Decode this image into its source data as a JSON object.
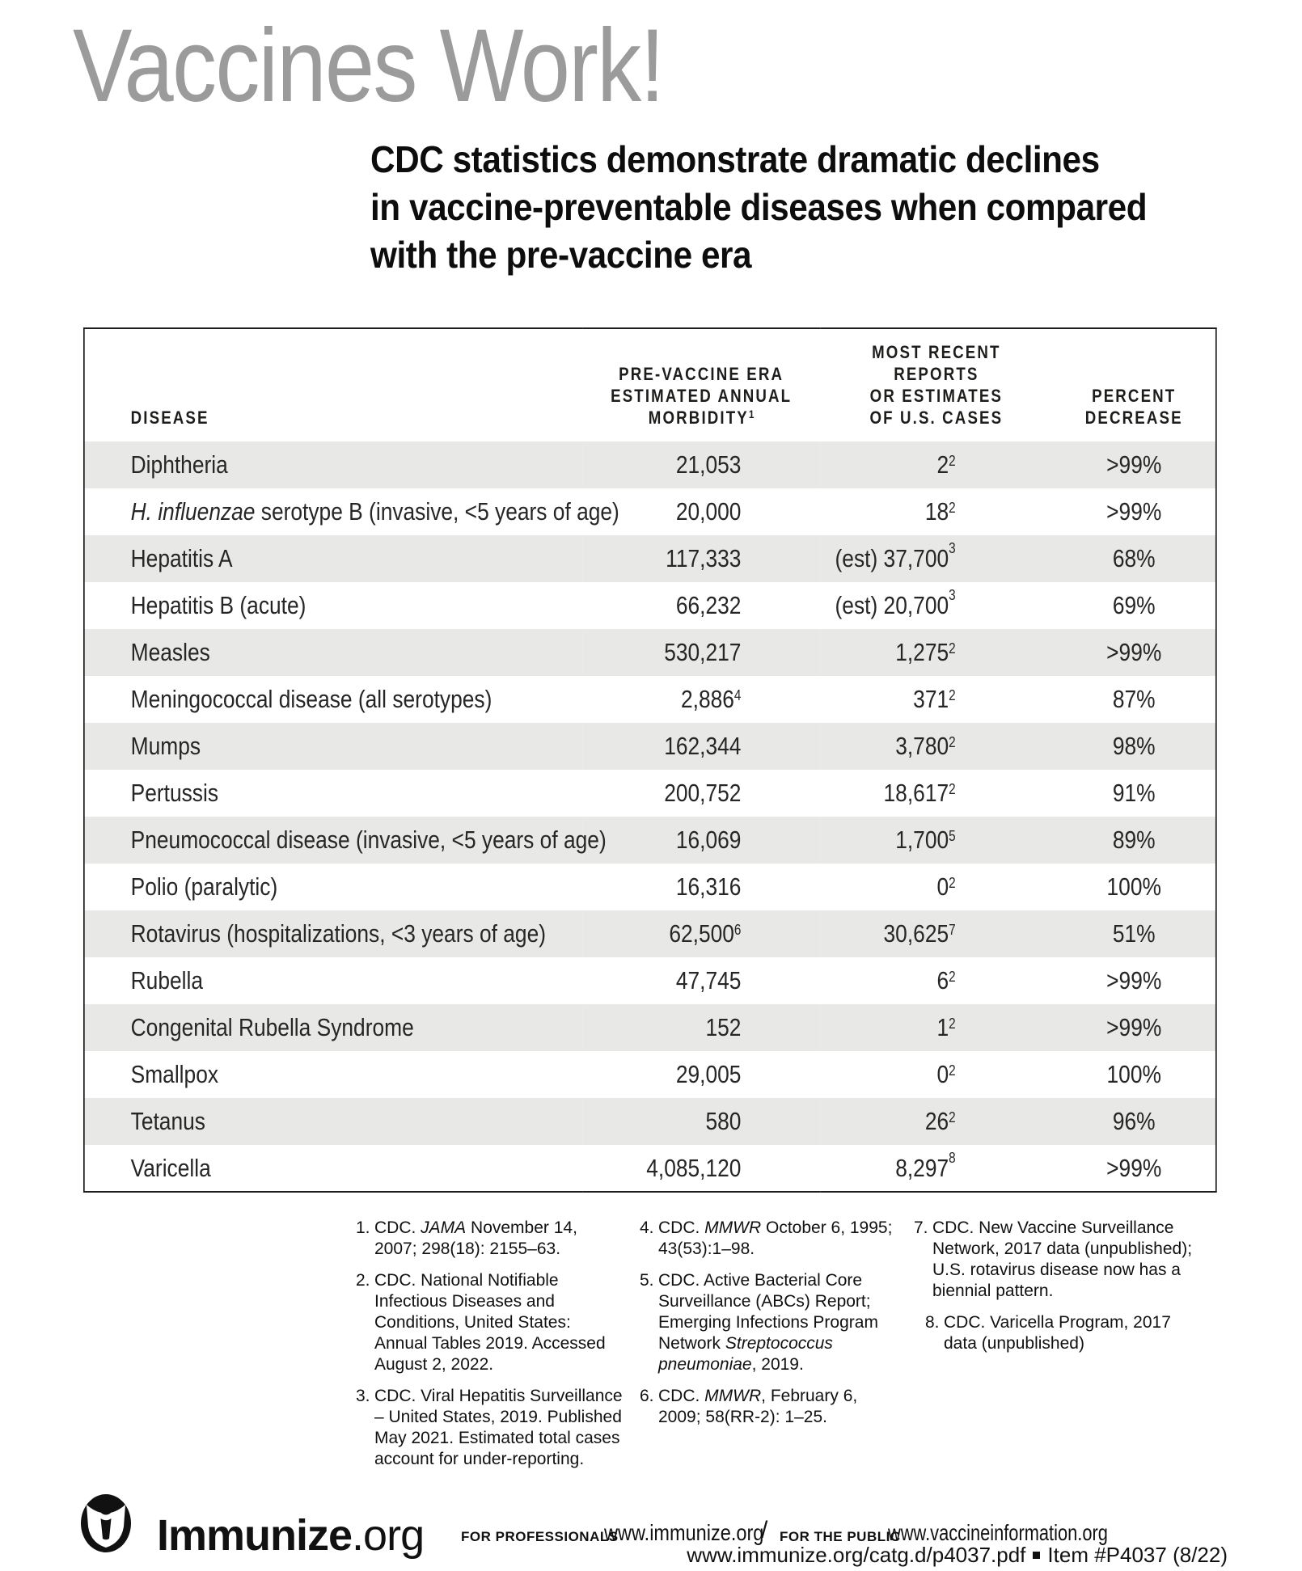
{
  "colors": {
    "row_shade": "#e8e8e7",
    "title_gray": "#9b9b9b",
    "ink": "#1d1d1b"
  },
  "page": {
    "title": "Vaccines Work!",
    "subtitle_lines": [
      "CDC statistics demonstrate dramatic declines",
      "in vaccine-preventable diseases when compared",
      "with the pre-vaccine era"
    ]
  },
  "table": {
    "headers": {
      "disease": "DISEASE",
      "morbidity": {
        "lines": [
          "PRE-VACCINE ERA",
          "ESTIMATED ANNUAL",
          "MORBIDITY"
        ],
        "sup": "1"
      },
      "cases": {
        "lines": [
          "MOST RECENT",
          "REPORTS",
          "OR ESTIMATES",
          "OF U.S. CASES"
        ]
      },
      "percent": {
        "lines": [
          "PERCENT",
          "DECREASE"
        ]
      }
    },
    "rows": [
      {
        "disease": "Diphtheria",
        "morbidity": {
          "v": "21,053"
        },
        "cases": {
          "v": "2",
          "sup": "2"
        },
        "percent": ">99%",
        "shaded": true
      },
      {
        "disease": "*H. influenzae* serotype B (invasive, <5 years of age)",
        "morbidity": {
          "v": "20,000"
        },
        "cases": {
          "v": "18",
          "sup": "2"
        },
        "percent": ">99%",
        "shaded": false
      },
      {
        "disease": "Hepatitis A",
        "morbidity": {
          "v": "117,333"
        },
        "cases": {
          "v": "(est) 37,700",
          "sup": "3",
          "raised": true
        },
        "percent": "68%",
        "shaded": true
      },
      {
        "disease": "Hepatitis B (acute)",
        "morbidity": {
          "v": "66,232"
        },
        "cases": {
          "v": "(est) 20,700",
          "sup": "3",
          "raised": true
        },
        "percent": "69%",
        "shaded": false
      },
      {
        "disease": "Measles",
        "morbidity": {
          "v": "530,217"
        },
        "cases": {
          "v": "1,275",
          "sup": "2"
        },
        "percent": ">99%",
        "shaded": true
      },
      {
        "disease": "Meningococcal disease (all serotypes)",
        "morbidity": {
          "v": "2,886",
          "sup": "4"
        },
        "cases": {
          "v": "371",
          "sup": "2"
        },
        "percent": "87%",
        "shaded": false
      },
      {
        "disease": "Mumps",
        "morbidity": {
          "v": "162,344"
        },
        "cases": {
          "v": "3,780",
          "sup": "2"
        },
        "percent": "98%",
        "shaded": true
      },
      {
        "disease": "Pertussis",
        "morbidity": {
          "v": "200,752"
        },
        "cases": {
          "v": "18,617",
          "sup": "2"
        },
        "percent": "91%",
        "shaded": false
      },
      {
        "disease": "Pneumococcal disease (invasive, <5 years of age)",
        "morbidity": {
          "v": "16,069"
        },
        "cases": {
          "v": "1,700",
          "sup": "5"
        },
        "percent": "89%",
        "shaded": true
      },
      {
        "disease": "Polio (paralytic)",
        "morbidity": {
          "v": "16,316"
        },
        "cases": {
          "v": "0",
          "sup": "2"
        },
        "percent": "100%",
        "shaded": false
      },
      {
        "disease": "Rotavirus (hospitalizations, <3 years of age)",
        "morbidity": {
          "v": "62,500",
          "sup": "6"
        },
        "cases": {
          "v": "30,625",
          "sup": "7"
        },
        "percent": "51%",
        "shaded": true
      },
      {
        "disease": "Rubella",
        "morbidity": {
          "v": "47,745"
        },
        "cases": {
          "v": "6",
          "sup": "2"
        },
        "percent": ">99%",
        "shaded": false
      },
      {
        "disease": "Congenital Rubella Syndrome",
        "morbidity": {
          "v": "152"
        },
        "cases": {
          "v": "1",
          "sup": "2"
        },
        "percent": ">99%",
        "shaded": true
      },
      {
        "disease": "Smallpox",
        "morbidity": {
          "v": "29,005"
        },
        "cases": {
          "v": "0",
          "sup": "2"
        },
        "percent": "100%",
        "shaded": false
      },
      {
        "disease": "Tetanus",
        "morbidity": {
          "v": "580"
        },
        "cases": {
          "v": "26",
          "sup": "2"
        },
        "percent": "96%",
        "shaded": true
      },
      {
        "disease": "Varicella",
        "morbidity": {
          "v": "4,085,120"
        },
        "cases": {
          "v": "8,297",
          "sup": "8",
          "raised": true
        },
        "percent": ">99%",
        "shaded": false
      }
    ]
  },
  "footnotes": {
    "columns": [
      [
        {
          "n": "1.",
          "text": "CDC. *JAMA* November 14, 2007; 298(18): 2155–63."
        },
        {
          "n": "2.",
          "text": "CDC. National Notifiable Infectious Diseases and Conditions, United States: Annual Tables 2019. Accessed August 2, 2022."
        },
        {
          "n": "3.",
          "text": "CDC. Viral Hepatitis Surveillance – United States, 2019. Published May 2021. Estimated total cases account for under-reporting."
        }
      ],
      [
        {
          "n": "4.",
          "text": "CDC. *MMWR* October 6, 1995; 43(53):1–98."
        },
        {
          "n": "5.",
          "text": "CDC. Active Bacterial Core Surveillance (ABCs) Report; Emerging Infections Program Network *Streptococcus pneumoniae*, 2019."
        },
        {
          "n": "6.",
          "text": "CDC. *MMWR*, February 6, 2009; 58(RR-2): 1–25."
        }
      ],
      [
        {
          "n": "7.",
          "text": "CDC. New Vaccine Surveillance Network, 2017 data (unpublished); U.S. rotavirus disease now has a biennial pattern."
        },
        {
          "n": "8.",
          "text": "CDC. Varicella Program, 2017 data (unpublished)",
          "indent": true
        }
      ]
    ]
  },
  "footer": {
    "brand_bold": "Immunize",
    "brand_light": ".org",
    "for_professionals_label": "FOR PROFESSIONALS",
    "professionals_url": "www.immunize.org",
    "slash": "/",
    "for_public_label": "FOR THE PUBLIC",
    "public_url": "www.vaccineinformation.org",
    "bottom_left": "www.immunize.org/catg.d/p4037.pdf",
    "bottom_right": "Item #P4037 (8/22)"
  }
}
